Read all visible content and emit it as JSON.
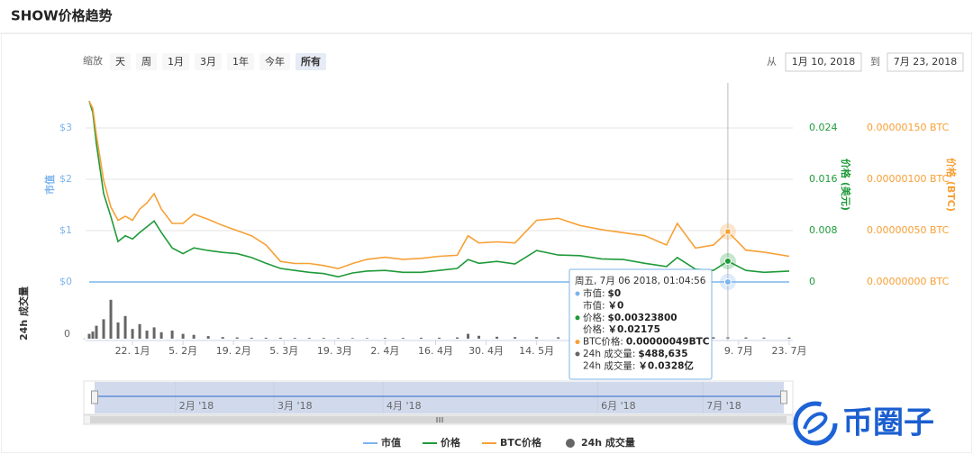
{
  "chart_data": {
    "type": "line",
    "title": "SHOW价格趋势",
    "zoom": {
      "label": "缩放",
      "buttons": [
        "天",
        "周",
        "1月",
        "3月",
        "1年",
        "今年",
        "所有"
      ]
    },
    "range": {
      "from_label": "从",
      "from": "1月 10, 2018",
      "to_label": "到",
      "to": "7月 23, 2018"
    },
    "x": [
      "2018-01-10",
      "2018-01-11",
      "2018-01-12",
      "2018-01-14",
      "2018-01-16",
      "2018-01-18",
      "2018-01-20",
      "2018-01-22",
      "2018-01-24",
      "2018-01-26",
      "2018-01-28",
      "2018-01-30",
      "2018-02-02",
      "2018-02-05",
      "2018-02-08",
      "2018-02-12",
      "2018-02-16",
      "2018-02-20",
      "2018-02-24",
      "2018-02-28",
      "2018-03-04",
      "2018-03-08",
      "2018-03-12",
      "2018-03-16",
      "2018-03-20",
      "2018-03-24",
      "2018-03-28",
      "2018-04-02",
      "2018-04-07",
      "2018-04-12",
      "2018-04-17",
      "2018-04-22",
      "2018-04-25",
      "2018-04-28",
      "2018-05-03",
      "2018-05-08",
      "2018-05-14",
      "2018-05-20",
      "2018-05-26",
      "2018-06-01",
      "2018-06-07",
      "2018-06-13",
      "2018-06-19",
      "2018-06-22",
      "2018-06-27",
      "2018-07-02",
      "2018-07-06",
      "2018-07-11",
      "2018-07-16",
      "2018-07-23"
    ],
    "xlim": [
      "2018-01-09",
      "2018-07-24"
    ],
    "xticks": [
      {
        "value": "2018-01-22",
        "label": "22. 1月"
      },
      {
        "value": "2018-02-05",
        "label": "5. 2月"
      },
      {
        "value": "2018-02-19",
        "label": "19. 2月"
      },
      {
        "value": "2018-03-05",
        "label": "5. 3月"
      },
      {
        "value": "2018-03-19",
        "label": "19. 3月"
      },
      {
        "value": "2018-04-02",
        "label": "2. 4月"
      },
      {
        "value": "2018-04-16",
        "label": "16. 4月"
      },
      {
        "value": "2018-04-30",
        "label": "30. 4月"
      },
      {
        "value": "2018-05-14",
        "label": "14. 5月"
      },
      {
        "value": "2018-07-09",
        "label": "9. 7月"
      },
      {
        "value": "2018-07-23",
        "label": "23. 7月"
      }
    ],
    "navigator_ticks": [
      {
        "value": "2018-02-01",
        "label": "2月 '18"
      },
      {
        "value": "2018-03-01",
        "label": "3月 '18"
      },
      {
        "value": "2018-04-01",
        "label": "4月 '18"
      },
      {
        "value": "2018-06-01",
        "label": "6月 '18"
      },
      {
        "value": "2018-07-01",
        "label": "7月 '18"
      }
    ],
    "ylabel": "市值",
    "ylim": [
      0,
      3.8
    ],
    "yticks": [
      {
        "value": 0,
        "label": "$0"
      },
      {
        "value": 1,
        "label": "$1"
      },
      {
        "value": 2,
        "label": "$2"
      },
      {
        "value": 3,
        "label": "$3"
      }
    ],
    "y2label": "价格 (美元)",
    "y2lim": [
      0,
      0.0304
    ],
    "y2ticks": [
      0,
      0.008,
      0.016,
      0.024
    ],
    "y3label": "价格 (BTC)",
    "y3lim": [
      0,
      1.9e-06
    ],
    "y3ticks": [
      {
        "value": 0,
        "label": "0.00000000 BTC"
      },
      {
        "value": 5e-07,
        "label": "0.00000050 BTC"
      },
      {
        "value": 1e-06,
        "label": "0.00000100 BTC"
      },
      {
        "value": 1.5e-06,
        "label": "0.00000150 BTC"
      }
    ],
    "y4label": "24h 成交量",
    "y4lim": [
      0,
      15000000
    ],
    "y4ticks": [
      0
    ],
    "grid": true,
    "series": [
      {
        "name": "市值",
        "color": "#7cb5ec",
        "axis": "y",
        "values": [
          0,
          0,
          0,
          0,
          0,
          0,
          0,
          0,
          0,
          0,
          0,
          0,
          0,
          0,
          0,
          0,
          0,
          0,
          0,
          0,
          0,
          0,
          0,
          0,
          0,
          0,
          0,
          0,
          0,
          0,
          0,
          0,
          0,
          0,
          0,
          0,
          0,
          0,
          0,
          0,
          0,
          0,
          0,
          0,
          0,
          0,
          0,
          0,
          0,
          0
        ]
      },
      {
        "name": "价格",
        "color": "#1f9a3a",
        "axis": "y2",
        "values": [
          0.0282,
          0.0264,
          0.0215,
          0.0138,
          0.0102,
          0.0063,
          0.0072,
          0.0067,
          0.0077,
          0.0086,
          0.0095,
          0.0077,
          0.0053,
          0.0044,
          0.0053,
          0.0049,
          0.0046,
          0.0044,
          0.0038,
          0.0029,
          0.0021,
          0.0018,
          0.0015,
          0.0013,
          0.0008,
          0.0014,
          0.0017,
          0.0018,
          0.0015,
          0.0015,
          0.0018,
          0.0021,
          0.0035,
          0.0029,
          0.0032,
          0.0028,
          0.0049,
          0.0042,
          0.0041,
          0.0036,
          0.0035,
          0.0029,
          0.0024,
          0.0038,
          0.002,
          0.0018,
          0.003238,
          0.0018,
          0.0015,
          0.0017
        ]
      },
      {
        "name": "BTC价格",
        "color": "#f7a035",
        "axis": "y3",
        "values": [
          1.76e-06,
          1.69e-06,
          1.43e-06,
          9.9e-07,
          7.3e-07,
          6e-07,
          6.4e-07,
          6e-07,
          7.1e-07,
          7.7e-07,
          8.6e-07,
          7.1e-07,
          5.7e-07,
          5.7e-07,
          6.6e-07,
          6.1e-07,
          5.5e-07,
          5e-07,
          4.5e-07,
          3.6e-07,
          2e-07,
          1.8e-07,
          1.8e-07,
          1.6e-07,
          1.3e-07,
          1.8e-07,
          2.2e-07,
          2.4e-07,
          2.2e-07,
          2.3e-07,
          2.5e-07,
          2.6e-07,
          4.5e-07,
          3.8e-07,
          3.9e-07,
          3.8e-07,
          6e-07,
          6.2e-07,
          5.5e-07,
          5.1e-07,
          4.8e-07,
          4.5e-07,
          3.6e-07,
          5.7e-07,
          3.3e-07,
          3.6e-07,
          4.9e-07,
          3.1e-07,
          2.9e-07,
          2.5e-07
        ]
      },
      {
        "name": "24h 成交量",
        "color": "#666666",
        "axis": "y4",
        "type": "bar",
        "values": [
          1500000,
          2200000,
          4000000,
          6000000,
          12000000,
          5000000,
          7000000,
          3000000,
          4500000,
          2500000,
          3500000,
          2000000,
          2500000,
          1500000,
          1200000,
          800000,
          500000,
          400000,
          300000,
          300000,
          300000,
          250000,
          250000,
          250000,
          200000,
          200000,
          200000,
          250000,
          250000,
          300000,
          300000,
          400000,
          1500000,
          900000,
          600000,
          500000,
          500000,
          450000,
          450000,
          400000,
          400000,
          400000,
          400000,
          500000,
          450000,
          450000,
          488635,
          400000,
          350000,
          350000
        ]
      }
    ],
    "tooltip": {
      "title": "周五, 7月 06 2018, 01:04:56",
      "rows": [
        [
          "市值:",
          "$0"
        ],
        [
          "市值:",
          "￥0"
        ],
        [
          "价格:",
          "$0.00323800"
        ],
        [
          "价格:",
          "￥0.02175"
        ],
        [
          "BTC价格:",
          "0.00000049BTC"
        ],
        [
          "24h 成交量:",
          "$488,635"
        ],
        [
          "24h 成交量:",
          "￥0.0328亿"
        ]
      ]
    },
    "watermark": "币圈子"
  }
}
